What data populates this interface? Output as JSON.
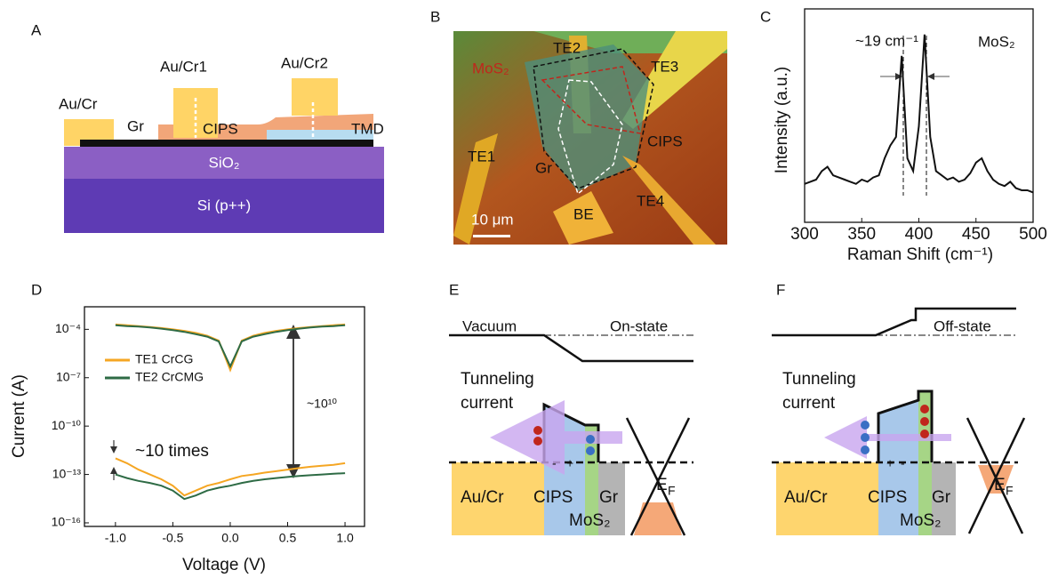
{
  "panel_labels": [
    "A",
    "B",
    "C",
    "D",
    "E",
    "F"
  ],
  "panel_a": {
    "au_cr": "Au/Cr",
    "gr": "Gr",
    "au_cr1": "Au/Cr1",
    "cips": "CIPS",
    "au_cr2": "Au/Cr2",
    "tmd": "TMD",
    "sio2": "SiO₂",
    "si": "Si (p++)"
  },
  "panel_b": {
    "mos2": "MoS₂",
    "te2": "TE2",
    "te3": "TE3",
    "te1": "TE1",
    "cips": "CIPS",
    "gr": "Gr",
    "be": "BE",
    "te4": "TE4",
    "scale": "10 μm"
  },
  "panel_e": {
    "vacuum": "Vacuum",
    "state": "On-state",
    "tunneling": [
      "Tunneling",
      "current"
    ],
    "au_cr": "Au/Cr",
    "cips": "CIPS",
    "mos2": "MoS₂",
    "gr": "Gr",
    "ef": [
      "E",
      "F"
    ],
    "signs": [
      "-",
      "+"
    ]
  },
  "panel_f": {
    "state": "Off-state",
    "tunneling": [
      "Tunneling",
      "current"
    ],
    "au_cr": "Au/Cr",
    "cips": "CIPS",
    "mos2": "MoS₂",
    "gr": "Gr",
    "ef": [
      "E",
      "F"
    ],
    "signs": [
      "+",
      "-"
    ]
  },
  "chart_data": [
    {
      "type": "line",
      "x_label": "Raman Shift (cm⁻¹)",
      "y_label": "Intensity (a.u.)",
      "annotations": [
        "~19 cm⁻¹",
        "MoS₂"
      ],
      "x": [
        300,
        305,
        310,
        315,
        320,
        325,
        330,
        335,
        340,
        345,
        350,
        355,
        360,
        365,
        370,
        375,
        380,
        385,
        390,
        395,
        400,
        405,
        410,
        415,
        420,
        425,
        430,
        435,
        440,
        445,
        450,
        455,
        460,
        465,
        470,
        475,
        480,
        485,
        490,
        495,
        500
      ],
      "series": [
        {
          "color": "#111111",
          "values": [
            18,
            19,
            20,
            24,
            26,
            22,
            21,
            20,
            19,
            18,
            20,
            19,
            21,
            22,
            30,
            36,
            40,
            78,
            30,
            24,
            45,
            88,
            40,
            24,
            22,
            20,
            21,
            19,
            20,
            23,
            28,
            30,
            24,
            20,
            18,
            17,
            19,
            16,
            15,
            15,
            14
          ]
        }
      ],
      "xlim": [
        300,
        500
      ],
      "xticks": [
        300,
        350,
        400,
        450,
        500
      ],
      "ylim": [
        0,
        100
      ]
    },
    {
      "type": "line",
      "log_y": true,
      "x_label": "Voltage (V)",
      "y_label": "Current (A)",
      "annotations": [
        "~10 times",
        "~10¹⁰"
      ],
      "x": [
        -1,
        -0.9,
        -0.8,
        -0.7,
        -0.6,
        -0.5,
        -0.4,
        -0.3,
        -0.2,
        -0.1,
        0,
        0.1,
        0.2,
        0.3,
        0.4,
        0.5,
        0.6,
        0.7,
        0.8,
        0.9,
        1
      ],
      "series": [
        {
          "name": "TE1 CrCG",
          "color": "#f5a623",
          "values": [
            0.0002,
            0.00018,
            0.00016,
            0.00014,
            0.00012,
            0.0001,
            8e-05,
            6e-05,
            4e-05,
            2e-05,
            3e-07,
            2e-05,
            4e-05,
            6e-05,
            8e-05,
            0.0001,
            0.00012,
            0.00014,
            0.00016,
            0.00018,
            0.0002
          ],
          "off_values": [
            1e-12,
            5e-13,
            2e-13,
            1e-13,
            5e-14,
            2e-14,
            5e-15,
            1e-14,
            2e-14,
            3e-14,
            5e-14,
            8e-14,
            1e-13,
            1.3e-13,
            1.6e-13,
            2e-13,
            2.5e-13,
            3e-13,
            3.5e-13,
            4e-13,
            5e-13
          ]
        },
        {
          "name": "TE2 CrCMG",
          "color": "#2e6b45",
          "values": [
            0.00018,
            0.00016,
            0.00015,
            0.00013,
            0.00011,
            9e-05,
            7e-05,
            5e-05,
            3.5e-05,
            1.8e-05,
            5e-07,
            1.8e-05,
            3.5e-05,
            5e-05,
            7e-05,
            9e-05,
            0.00011,
            0.00013,
            0.00015,
            0.00016,
            0.00018
          ],
          "off_values": [
            1e-13,
            6e-14,
            4e-14,
            3e-14,
            2e-14,
            1e-14,
            3e-15,
            5e-15,
            1e-14,
            1.5e-14,
            2e-14,
            3e-14,
            4e-14,
            5e-14,
            6e-14,
            7e-14,
            8e-14,
            9e-14,
            1e-13,
            1.1e-13,
            1.2e-13
          ]
        }
      ],
      "xlim": [
        -1.27,
        1.17
      ],
      "xticks": [
        {
          "value": -1,
          "label": "-1.0"
        },
        -0.5,
        {
          "value": 0,
          "label": "0.0"
        },
        0.5,
        {
          "value": 1,
          "label": "1.0"
        }
      ],
      "ylim": [
        6e-17,
        0.0025
      ],
      "yticks": [
        {
          "value": 1e-16,
          "label": "10⁻¹⁶"
        },
        {
          "value": 1e-13,
          "label": "10⁻¹³"
        },
        {
          "value": 1e-10,
          "label": "10⁻¹⁰"
        },
        {
          "value": 1e-07,
          "label": "10⁻⁷"
        },
        {
          "value": 0.0001,
          "label": "10⁻⁴"
        }
      ]
    }
  ]
}
